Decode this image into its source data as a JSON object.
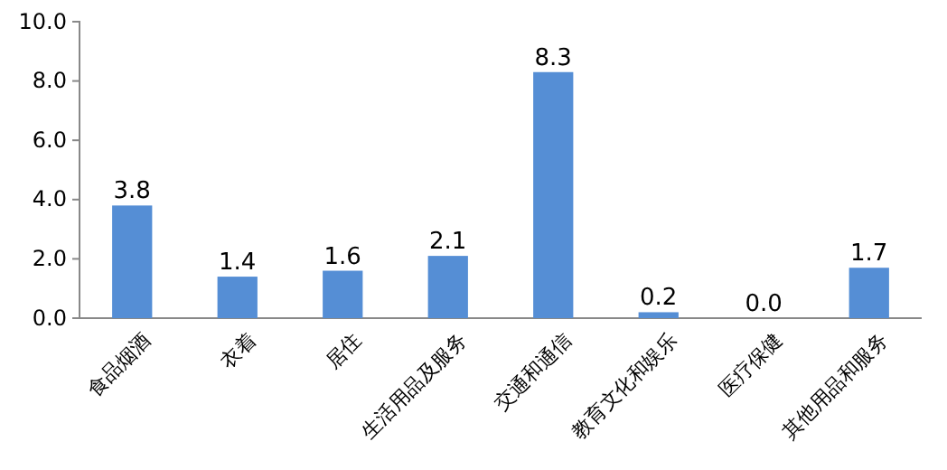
{
  "chart_data": {
    "type": "bar",
    "categories": [
      "食品烟酒",
      "衣着",
      "居住",
      "生活用品及服务",
      "交通和通信",
      "教育文化和娱乐",
      "医疗保健",
      "其他用品和服务"
    ],
    "values": [
      3.8,
      1.4,
      1.6,
      2.1,
      8.3,
      0.2,
      0.0,
      1.7
    ],
    "value_labels": [
      "3.8",
      "1.4",
      "1.6",
      "2.1",
      "8.3",
      "0.2",
      "0.0",
      "1.7"
    ],
    "color": "#558ed5",
    "ylim": [
      0,
      10
    ],
    "yticks": [
      {
        "value": 0,
        "label": "0.0"
      },
      {
        "value": 2,
        "label": "2.0"
      },
      {
        "value": 4,
        "label": "4.0"
      },
      {
        "value": 6,
        "label": "6.0"
      },
      {
        "value": 8,
        "label": "8.0"
      },
      {
        "value": 10,
        "label": "10.0"
      }
    ],
    "grid": false
  }
}
